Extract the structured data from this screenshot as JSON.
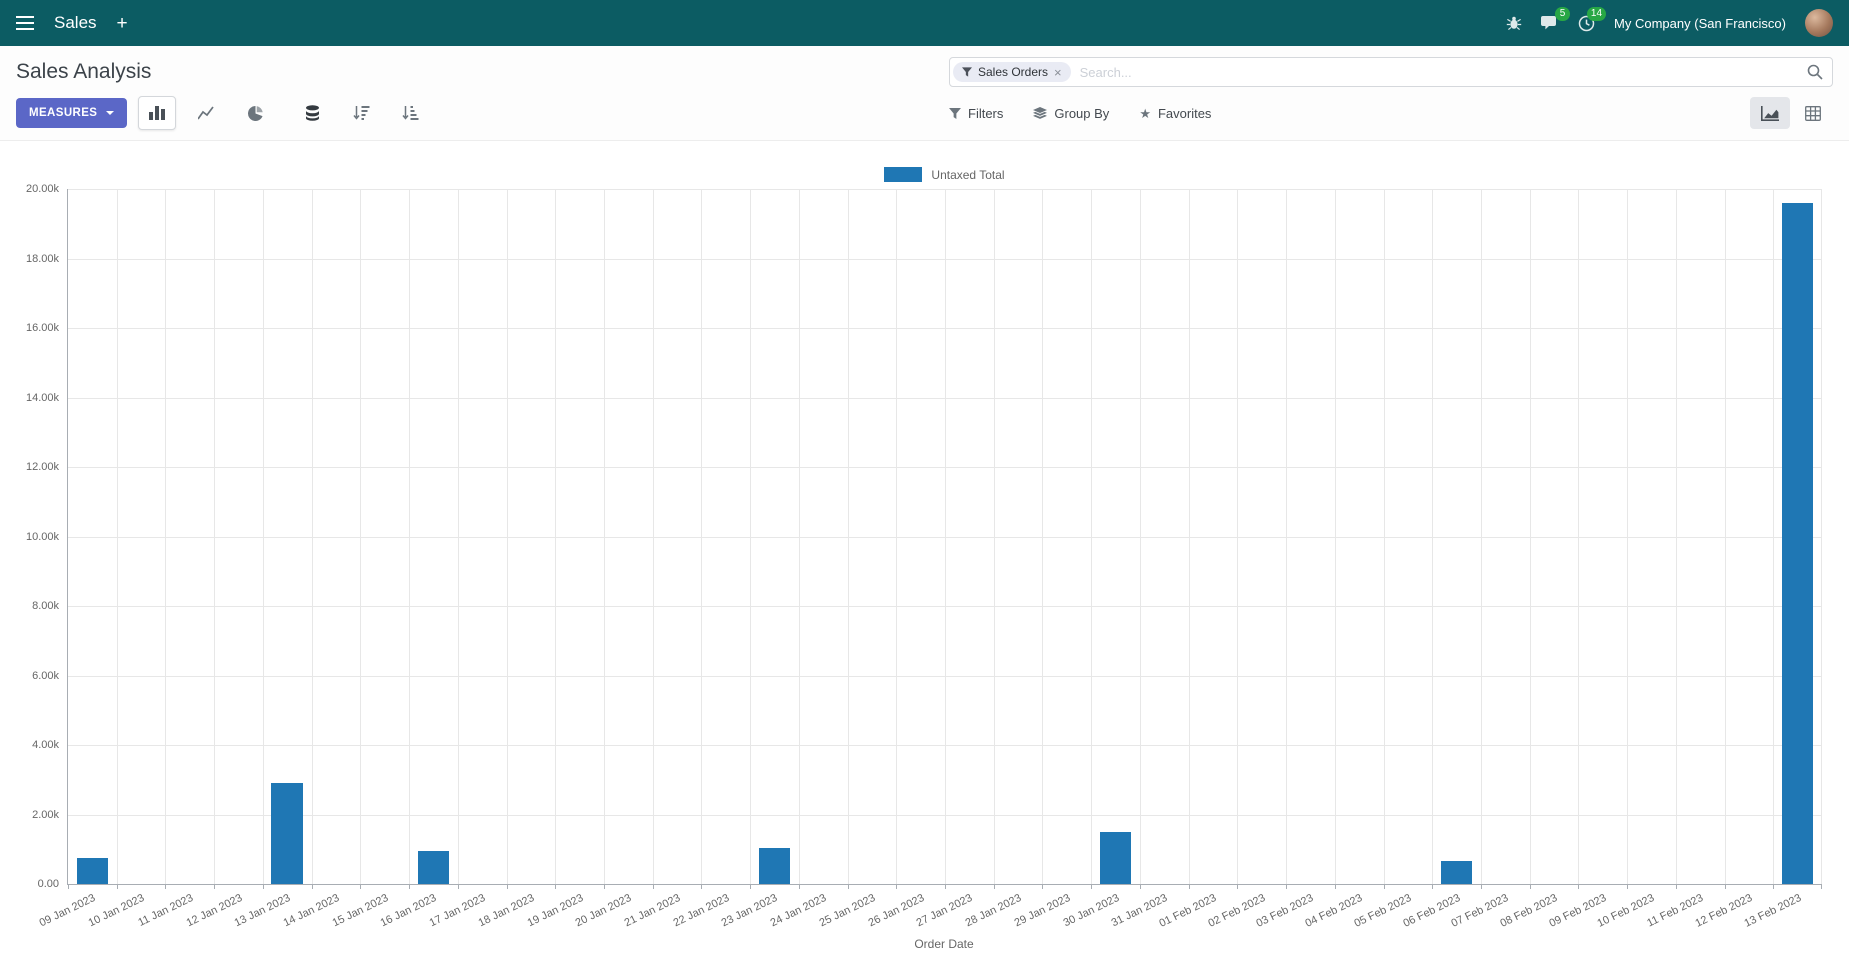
{
  "colors": {
    "navbar_bg": "#0c5c63",
    "accent": "#5b67c7",
    "badge_green": "#28a745",
    "bar_blue": "#1f77b4"
  },
  "icons": {
    "plus": "+",
    "star": "★",
    "close": "×"
  },
  "navbar": {
    "app_label": "Sales",
    "messages_badge": "5",
    "activities_badge": "14",
    "company": "My Company (San Francisco)"
  },
  "control_panel": {
    "title": "Sales Analysis",
    "measures_label": "MEASURES",
    "search": {
      "facet": "Sales Orders",
      "placeholder": "Search..."
    },
    "filters_label": "Filters",
    "group_by_label": "Group By",
    "favorites_label": "Favorites"
  },
  "chart_data": {
    "type": "bar",
    "title": "",
    "series_name": "Untaxed Total",
    "series_color": "#1f77b4",
    "xlabel": "Order Date",
    "ylabel": "",
    "ylim": [
      0,
      20000
    ],
    "ytick_step": 2000,
    "ytick_labels": [
      "0.00",
      "2.00k",
      "4.00k",
      "6.00k",
      "8.00k",
      "10.00k",
      "12.00k",
      "14.00k",
      "16.00k",
      "18.00k",
      "20.00k"
    ],
    "legend_position": "top",
    "grid": true,
    "categories": [
      "09 Jan 2023",
      "10 Jan 2023",
      "11 Jan 2023",
      "12 Jan 2023",
      "13 Jan 2023",
      "14 Jan 2023",
      "15 Jan 2023",
      "16 Jan 2023",
      "17 Jan 2023",
      "18 Jan 2023",
      "19 Jan 2023",
      "20 Jan 2023",
      "21 Jan 2023",
      "22 Jan 2023",
      "23 Jan 2023",
      "24 Jan 2023",
      "25 Jan 2023",
      "26 Jan 2023",
      "27 Jan 2023",
      "28 Jan 2023",
      "29 Jan 2023",
      "30 Jan 2023",
      "31 Jan 2023",
      "01 Feb 2023",
      "02 Feb 2023",
      "03 Feb 2023",
      "04 Feb 2023",
      "05 Feb 2023",
      "06 Feb 2023",
      "07 Feb 2023",
      "08 Feb 2023",
      "09 Feb 2023",
      "10 Feb 2023",
      "11 Feb 2023",
      "12 Feb 2023",
      "13 Feb 2023"
    ],
    "values": [
      750,
      0,
      0,
      0,
      2900,
      0,
      0,
      950,
      0,
      0,
      0,
      0,
      0,
      0,
      1050,
      0,
      0,
      0,
      0,
      0,
      0,
      1500,
      0,
      0,
      0,
      0,
      0,
      0,
      650,
      0,
      0,
      0,
      0,
      0,
      0,
      19600
    ]
  }
}
